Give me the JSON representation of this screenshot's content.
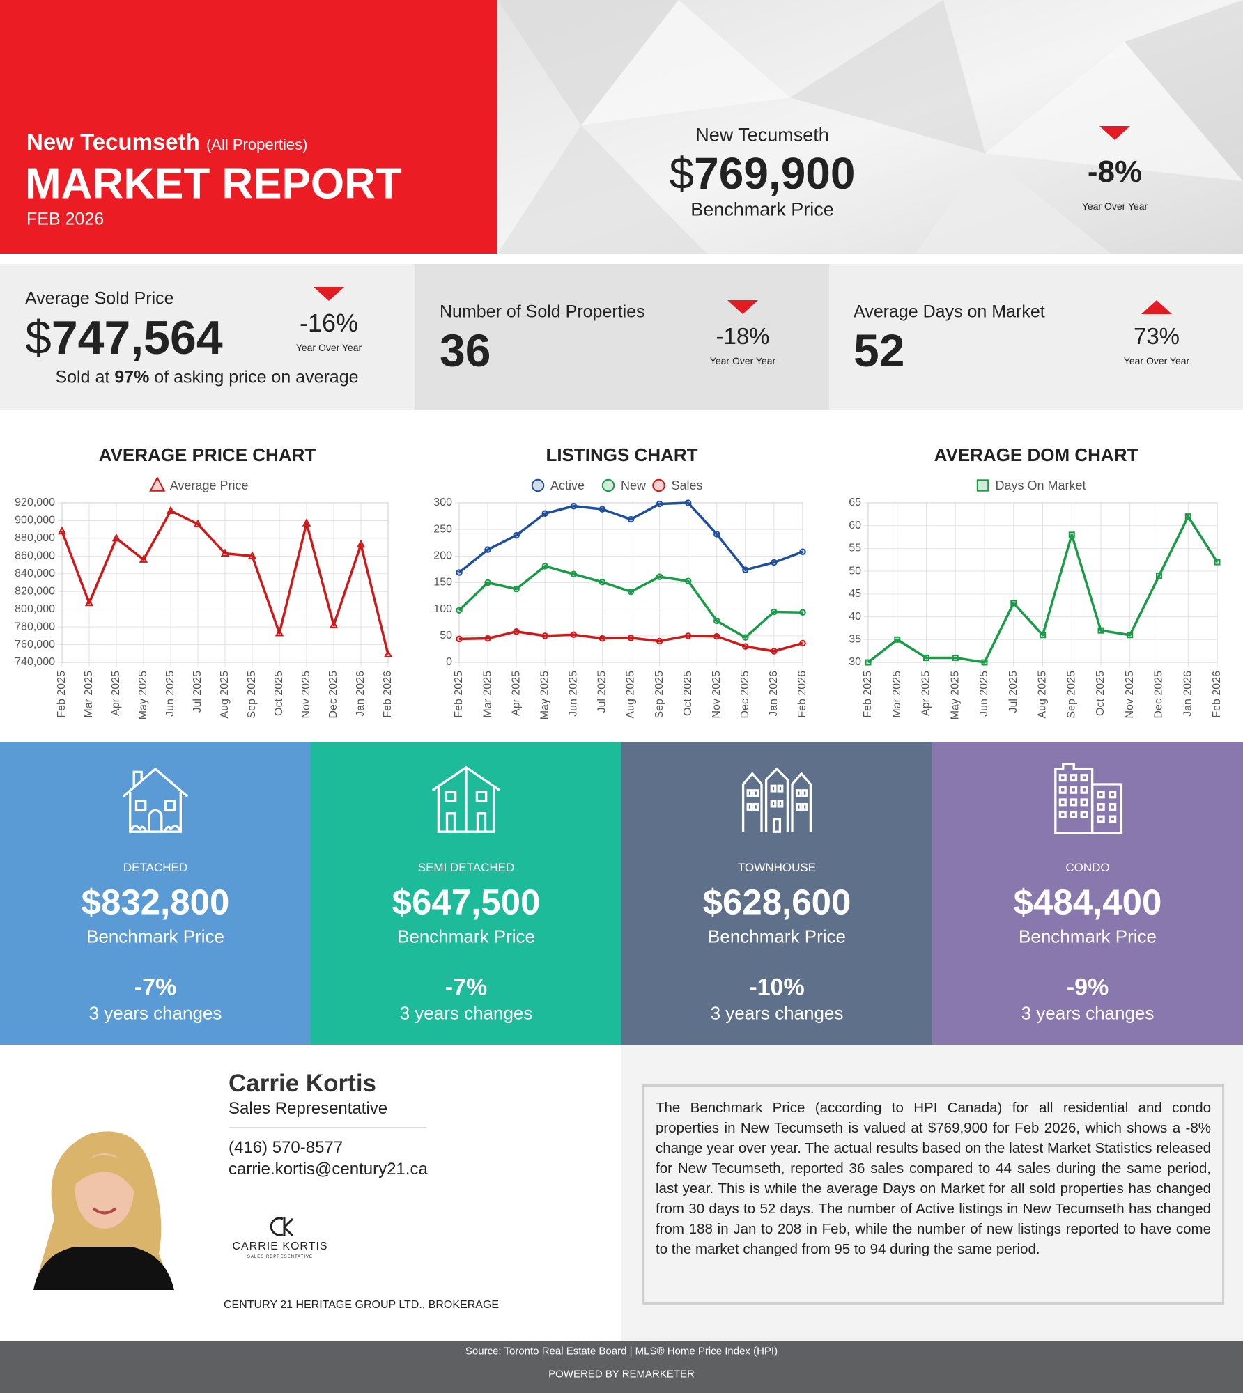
{
  "header": {
    "city": "New Tecumseth",
    "scope": "(All Properties)",
    "title": "MARKET REPORT",
    "date": "FEB 2026"
  },
  "benchmark": {
    "city": "New Tecumseth",
    "currency": "$",
    "price": "769,900",
    "label": "Benchmark Price",
    "change": "-8%",
    "direction": "down",
    "change_label": "Year Over Year"
  },
  "stats": [
    {
      "label": "Average Sold Price",
      "currency": "$",
      "value": "747,564",
      "change": "-16%",
      "direction": "down",
      "change_label": "Year Over Year",
      "note": [
        "Sold at",
        "97%",
        "of asking price on average"
      ]
    },
    {
      "label": "Number of Sold Properties",
      "value": "36",
      "change": "-18%",
      "direction": "down",
      "change_label": "Year Over Year"
    },
    {
      "label": "Average Days on Market",
      "value": "52",
      "change": "73%",
      "direction": "up",
      "change_label": "Year Over Year"
    }
  ],
  "chart_data": [
    {
      "type": "line",
      "title": "AVERAGE PRICE CHART",
      "marker": "triangle",
      "grid": true,
      "categories": [
        "Feb 2025",
        "Mar 2025",
        "Apr 2025",
        "May 2025",
        "Jun 2025",
        "Jul 2025",
        "Aug 2025",
        "Sep 2025",
        "Oct 2025",
        "Nov 2025",
        "Dec 2025",
        "Jan 2026",
        "Feb 2026"
      ],
      "series": [
        {
          "name": "Average Price",
          "color": "#cc1a1a",
          "values": [
            888000,
            807000,
            880000,
            856000,
            911000,
            896000,
            863000,
            860000,
            773000,
            897000,
            782000,
            873000,
            749000
          ]
        }
      ],
      "ylim": [
        740000,
        920000
      ],
      "yticks": [
        {
          "value": 740000,
          "label": "740,000"
        },
        {
          "value": 760000,
          "label": "760,000"
        },
        {
          "value": 780000,
          "label": "780,000"
        },
        {
          "value": 800000,
          "label": "800,000"
        },
        {
          "value": 820000,
          "label": "820,000"
        },
        {
          "value": 840000,
          "label": "840,000"
        },
        {
          "value": 860000,
          "label": "860,000"
        },
        {
          "value": 880000,
          "label": "880,000"
        },
        {
          "value": 900000,
          "label": "900,000"
        },
        {
          "value": 920000,
          "label": "920,000"
        }
      ]
    },
    {
      "type": "line",
      "title": "LISTINGS CHART",
      "marker": "circle",
      "grid": true,
      "categories": [
        "Feb 2025",
        "Mar 2025",
        "Apr 2025",
        "May 2025",
        "Jun 2025",
        "Jul 2025",
        "Aug 2025",
        "Sep 2025",
        "Oct 2025",
        "Nov 2025",
        "Dec 2025",
        "Jan 2026",
        "Feb 2026"
      ],
      "series": [
        {
          "name": "Active",
          "color": "#1f4e9c",
          "values": [
            169,
            212,
            239,
            280,
            294,
            288,
            269,
            298,
            300,
            241,
            174,
            188,
            208
          ]
        },
        {
          "name": "New",
          "color": "#1a9b48",
          "values": [
            98,
            150,
            138,
            181,
            166,
            151,
            133,
            161,
            153,
            78,
            47,
            95,
            94
          ]
        },
        {
          "name": "Sales",
          "color": "#cc1a1a",
          "values": [
            44,
            45,
            58,
            50,
            52,
            45,
            46,
            40,
            50,
            49,
            30,
            21,
            36
          ]
        }
      ],
      "ylim": [
        0,
        300
      ],
      "yticks": [
        0,
        50,
        100,
        150,
        200,
        250,
        300
      ]
    },
    {
      "type": "line",
      "title": "AVERAGE DOM CHART",
      "marker": "square",
      "grid": true,
      "categories": [
        "Feb 2025",
        "Mar 2025",
        "Apr 2025",
        "May 2025",
        "Jun 2025",
        "Jul 2025",
        "Aug 2025",
        "Sep 2025",
        "Oct 2025",
        "Nov 2025",
        "Dec 2025",
        "Jan 2026",
        "Feb 2026"
      ],
      "series": [
        {
          "name": "Days On Market",
          "color": "#1a9b48",
          "values": [
            30,
            35,
            31,
            31,
            30,
            43,
            36,
            58,
            37,
            36,
            49,
            62,
            52
          ]
        }
      ],
      "ylim": [
        30,
        65
      ],
      "yticks": [
        30,
        35,
        40,
        45,
        50,
        55,
        60,
        65
      ]
    }
  ],
  "property_types": [
    {
      "name": "DETACHED",
      "price": "$832,800",
      "label": "Benchmark Price",
      "change": "-7%",
      "change_label": "3 years changes",
      "color": "#5b9bd5"
    },
    {
      "name": "SEMI DETACHED",
      "price": "$647,500",
      "label": "Benchmark Price",
      "change": "-7%",
      "change_label": "3 years changes",
      "color": "#1dbb9a"
    },
    {
      "name": "TOWNHOUSE",
      "price": "$628,600",
      "label": "Benchmark Price",
      "change": "-10%",
      "change_label": "3 years changes",
      "color": "#5f718a"
    },
    {
      "name": "CONDO",
      "price": "$484,400",
      "label": "Benchmark Price",
      "change": "-9%",
      "change_label": "3 years changes",
      "color": "#8878ad"
    }
  ],
  "agent": {
    "name": "Carrie Kortis",
    "title": "Sales Representative",
    "phone": "(416) 570-8577",
    "email": "carrie.kortis@century21.ca",
    "logo_name": "CARRIE KORTIS",
    "logo_tagline": "SALES REPRESENTATIVE",
    "brokerage": "CENTURY 21 HERITAGE GROUP LTD., BROKERAGE"
  },
  "summary": "The Benchmark Price (according to HPI Canada) for all residential and condo properties in New Tecumseth is valued at $769,900 for Feb 2026, which shows a -8% change year over year. The actual results based on the latest Market Statistics released for New Tecumseth, reported 36 sales compared to 44 sales during the same period, last year. This is while the average Days on Market for all sold properties has changed from 30 days to 52 days. The number of Active listings in New Tecumseth has changed from 188 in Jan to 208 in Feb, while the number of new listings reported to have come to the market changed from 95 to 94 during the same period.",
  "footer": {
    "source": "Source: Toronto Real Estate Board | MLS® Home Price Index (HPI)",
    "powered_by": "POWERED BY REMARKETER"
  }
}
